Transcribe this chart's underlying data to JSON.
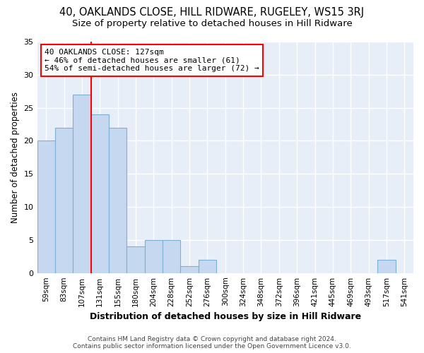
{
  "title": "40, OAKLANDS CLOSE, HILL RIDWARE, RUGELEY, WS15 3RJ",
  "subtitle": "Size of property relative to detached houses in Hill Ridware",
  "xlabel": "Distribution of detached houses by size in Hill Ridware",
  "ylabel": "Number of detached properties",
  "footer_line1": "Contains HM Land Registry data © Crown copyright and database right 2024.",
  "footer_line2": "Contains public sector information licensed under the Open Government Licence v3.0.",
  "categories": [
    "59sqm",
    "83sqm",
    "107sqm",
    "131sqm",
    "155sqm",
    "180sqm",
    "204sqm",
    "228sqm",
    "252sqm",
    "276sqm",
    "300sqm",
    "324sqm",
    "348sqm",
    "372sqm",
    "396sqm",
    "421sqm",
    "445sqm",
    "469sqm",
    "493sqm",
    "517sqm",
    "541sqm"
  ],
  "values": [
    20,
    22,
    27,
    24,
    22,
    4,
    5,
    5,
    1,
    2,
    0,
    0,
    0,
    0,
    0,
    0,
    0,
    0,
    0,
    2,
    0
  ],
  "bar_color": "#c5d8f0",
  "bar_edge_color": "#7bafd4",
  "annotation_line1": "40 OAKLANDS CLOSE: 127sqm",
  "annotation_line2": "← 46% of detached houses are smaller (61)",
  "annotation_line3": "54% of semi-detached houses are larger (72) →",
  "annotation_box_color": "white",
  "annotation_box_edge_color": "red",
  "red_line_x": 2.5,
  "ylim": [
    0,
    35
  ],
  "yticks": [
    0,
    5,
    10,
    15,
    20,
    25,
    30,
    35
  ],
  "background_color": "#e8eef8",
  "grid_color": "white",
  "title_fontsize": 10.5,
  "subtitle_fontsize": 9.5,
  "xlabel_fontsize": 9,
  "ylabel_fontsize": 8.5,
  "tick_fontsize": 7.5,
  "annotation_fontsize": 8.0,
  "footer_fontsize": 6.5
}
